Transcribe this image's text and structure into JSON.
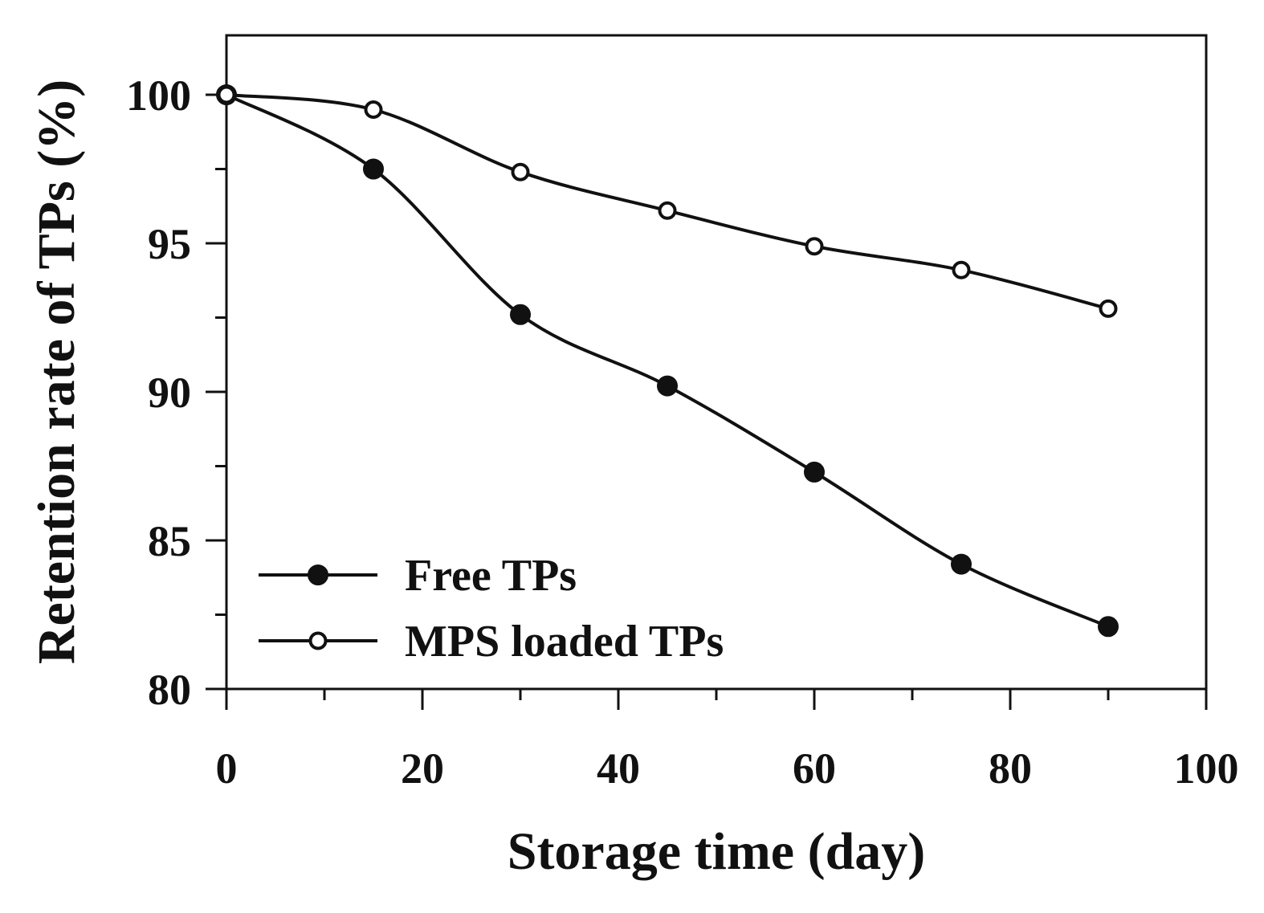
{
  "chart_data": {
    "type": "line",
    "title": "",
    "xlabel": "Storage time (day)",
    "ylabel": "Retention rate of TPs (%)",
    "xlim": [
      0,
      100
    ],
    "ylim": [
      80,
      102
    ],
    "xticks": [
      0,
      20,
      40,
      60,
      80,
      100
    ],
    "xtick_labels": [
      "0",
      "20",
      "40",
      "60",
      "80",
      "100"
    ],
    "yticks": [
      80,
      85,
      90,
      95,
      100
    ],
    "ytick_labels": [
      "80",
      "85",
      "90",
      "95",
      "100"
    ],
    "grid": false,
    "legend_position": "bottom-left",
    "series": [
      {
        "name": "Free TPs",
        "marker": "filled-circle",
        "x": [
          0,
          15,
          30,
          45,
          60,
          75,
          90
        ],
        "y": [
          100.0,
          97.5,
          92.6,
          90.2,
          87.3,
          84.2,
          82.1
        ]
      },
      {
        "name": "MPS loaded TPs",
        "marker": "open-circle",
        "x": [
          0,
          15,
          30,
          45,
          60,
          75,
          90
        ],
        "y": [
          100.0,
          99.5,
          97.4,
          96.1,
          94.9,
          94.1,
          92.8
        ]
      }
    ]
  },
  "colors": {
    "line": "#111111",
    "background": "#ffffff",
    "open_marker_fill": "#ffffff"
  }
}
